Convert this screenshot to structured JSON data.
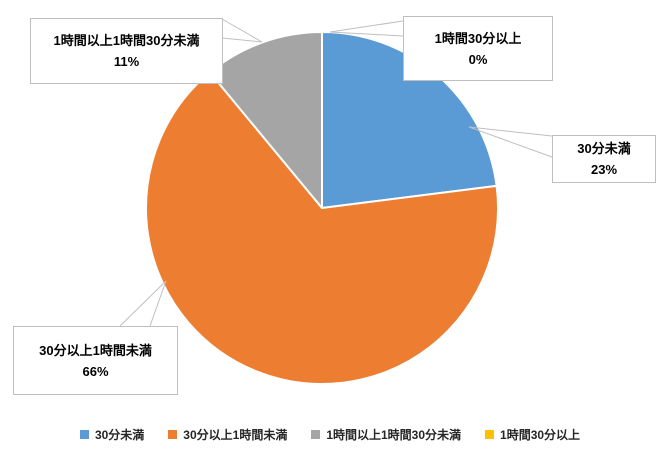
{
  "chart_data": {
    "type": "pie",
    "title": "",
    "categories": [
      "30分未満",
      "30分以上1時間未満",
      "1時間以上1時間30分未満",
      "1時間30分以上"
    ],
    "values": [
      23,
      66,
      11,
      0
    ],
    "colors": [
      "#5B9BD5",
      "#ED7D31",
      "#A5A5A5",
      "#FFC000"
    ],
    "start_angle_deg": 0,
    "direction": "clockwise",
    "legend_position": "bottom",
    "labels": [
      {
        "name": "30分未満",
        "pct": "23%"
      },
      {
        "name": "30分以上1時間未満",
        "pct": "66%"
      },
      {
        "name": "1時間以上1時間30分未満",
        "pct": "11%"
      },
      {
        "name": "1時間30分以上",
        "pct": "0%"
      }
    ]
  }
}
